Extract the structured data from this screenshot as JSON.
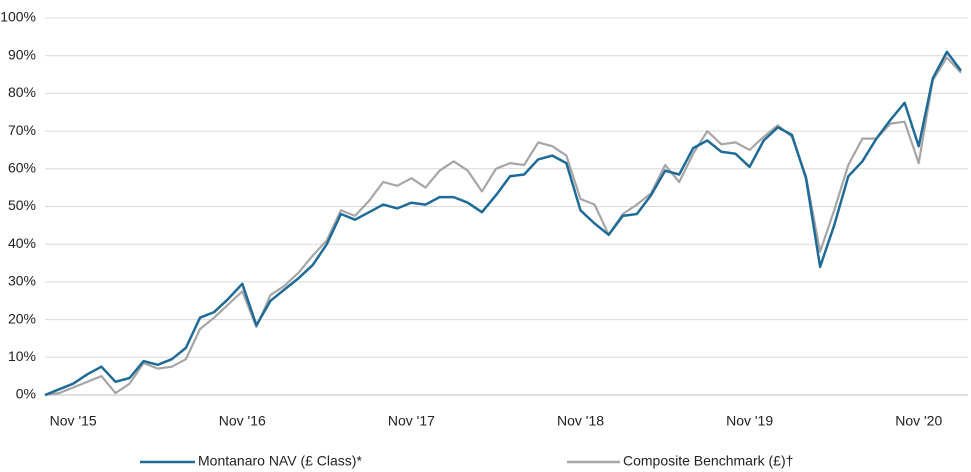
{
  "chart_data": {
    "type": "line",
    "categories": [
      null,
      null,
      "Nov '15",
      null,
      null,
      null,
      null,
      null,
      null,
      null,
      null,
      null,
      null,
      null,
      "Nov '16",
      null,
      null,
      null,
      null,
      null,
      null,
      null,
      null,
      null,
      null,
      null,
      "Nov '17",
      null,
      null,
      null,
      null,
      null,
      null,
      null,
      null,
      null,
      null,
      null,
      "Nov '18",
      null,
      null,
      null,
      null,
      null,
      null,
      null,
      null,
      null,
      null,
      null,
      "Nov '19",
      null,
      null,
      null,
      null,
      null,
      null,
      null,
      null,
      null,
      null,
      null,
      "Nov '20",
      null,
      null,
      null
    ],
    "series": [
      {
        "name": "Montanaro NAV (£ Class)*",
        "color": "#1f6b98",
        "values": [
          0,
          1.5,
          3,
          5.5,
          7.5,
          3.5,
          4.5,
          9,
          8,
          9.5,
          12.5,
          20.5,
          22,
          25.5,
          29.5,
          18.5,
          25,
          28,
          31,
          34.5,
          40,
          48,
          46.5,
          48.5,
          50.5,
          49.5,
          51,
          50.5,
          52.5,
          52.5,
          51,
          48.5,
          53,
          58,
          58.5,
          62.5,
          63.5,
          61.5,
          49,
          45.5,
          42.5,
          47.5,
          48,
          53,
          59.5,
          58.5,
          65.5,
          67.5,
          64.5,
          64,
          60.5,
          67.5,
          71,
          69,
          57.5,
          34,
          45,
          58,
          62,
          68,
          73,
          77.5,
          66,
          84,
          91,
          86
        ]
      },
      {
        "name": "Composite Benchmark (£)†",
        "color": "#a6a6a6",
        "values": [
          0,
          0.5,
          2,
          3.5,
          5,
          0.5,
          3,
          8.5,
          7,
          7.5,
          9.5,
          17.5,
          20.5,
          24,
          27.5,
          18,
          26.5,
          29,
          32.5,
          37,
          41,
          49,
          47.5,
          51.5,
          56.5,
          55.5,
          57.5,
          55,
          59.5,
          62,
          59.5,
          54,
          60,
          61.5,
          61,
          67,
          66,
          63.5,
          52,
          50.5,
          42.5,
          48,
          50.5,
          53.5,
          61,
          56.5,
          64,
          70,
          66.5,
          67,
          65,
          68.5,
          71.5,
          68.5,
          58,
          38,
          49,
          61,
          68,
          68,
          72,
          72.5,
          61.5,
          83.5,
          89.5,
          85.5
        ]
      }
    ],
    "ylim": [
      0,
      100
    ],
    "yticks": [
      {
        "value": 0,
        "label": "0%"
      },
      {
        "value": 10,
        "label": "10%"
      },
      {
        "value": 20,
        "label": "20%"
      },
      {
        "value": 30,
        "label": "30%"
      },
      {
        "value": 40,
        "label": "40%"
      },
      {
        "value": 50,
        "label": "50%"
      },
      {
        "value": 60,
        "label": "60%"
      },
      {
        "value": 70,
        "label": "70%"
      },
      {
        "value": 80,
        "label": "80%"
      },
      {
        "value": 90,
        "label": "90%"
      },
      {
        "value": 100,
        "label": "100%"
      }
    ],
    "grid": true
  }
}
